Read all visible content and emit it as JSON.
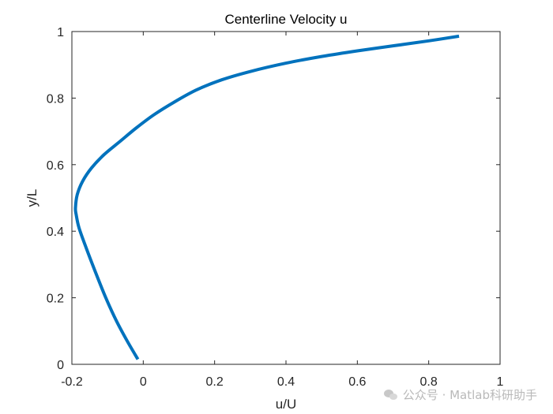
{
  "chart_data": {
    "type": "line",
    "title": "Centerline Velocity u",
    "xlabel": "u/U",
    "ylabel": "y/L",
    "xlim": [
      -0.2,
      1
    ],
    "ylim": [
      0,
      1
    ],
    "xticks": [
      -0.2,
      0,
      0.2,
      0.4,
      0.6,
      0.8,
      1
    ],
    "xtick_labels": [
      "-0.2",
      "0",
      "0.2",
      "0.4",
      "0.6",
      "0.8",
      "1"
    ],
    "yticks": [
      0,
      0.2,
      0.4,
      0.6,
      0.8,
      1
    ],
    "ytick_labels": [
      "0",
      "0.2",
      "0.4",
      "0.6",
      "0.8",
      "1"
    ],
    "grid": false,
    "series": [
      {
        "color": "#0072BD",
        "x": [
          -0.015,
          -0.045,
          -0.075,
          -0.105,
          -0.135,
          -0.16,
          -0.18,
          -0.188,
          -0.19,
          -0.185,
          -0.17,
          -0.145,
          -0.11,
          -0.065,
          -0.02,
          0.03,
          0.09,
          0.15,
          0.22,
          0.3,
          0.4,
          0.5,
          0.6,
          0.7,
          0.8,
          0.885
        ],
        "y": [
          0.015,
          0.07,
          0.13,
          0.2,
          0.28,
          0.35,
          0.41,
          0.45,
          0.47,
          0.51,
          0.55,
          0.59,
          0.63,
          0.67,
          0.71,
          0.75,
          0.79,
          0.825,
          0.855,
          0.88,
          0.905,
          0.925,
          0.942,
          0.957,
          0.972,
          0.986
        ]
      }
    ]
  },
  "watermark": "公众号 · Matlab科研助手"
}
